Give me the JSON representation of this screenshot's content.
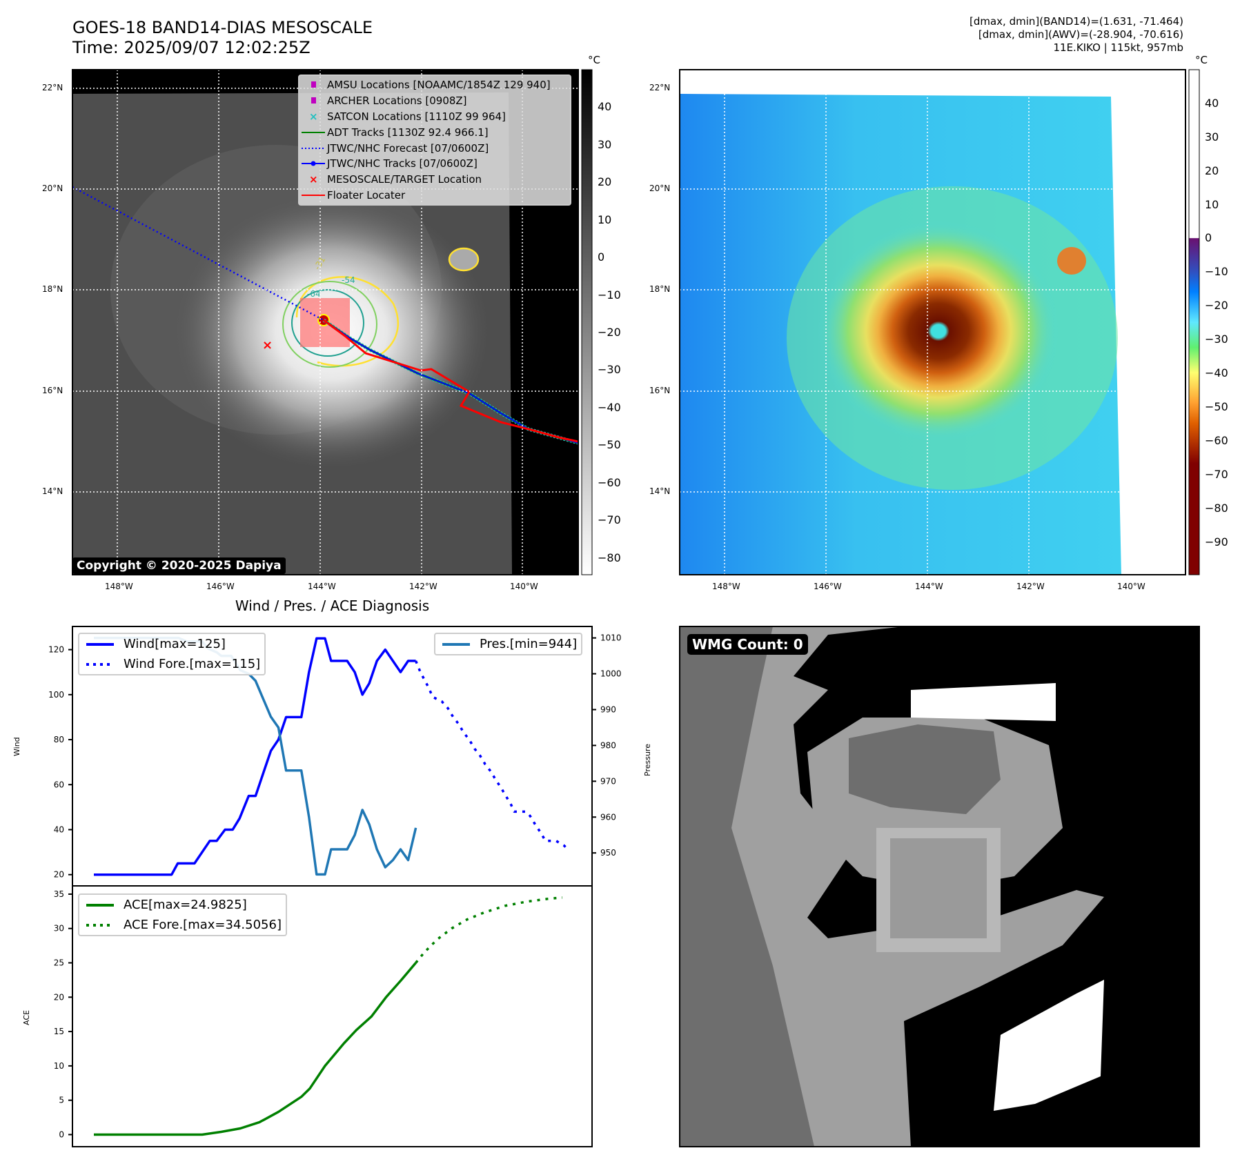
{
  "header": {
    "title_line1": "GOES-18 BAND14-DIAS MESOSCALE",
    "title_line2": "Time: 2025/09/07 12:02:25Z",
    "info_line1": "[dmax, dmin](BAND14)=(1.631, -71.464)",
    "info_line2": "[dmax, dmin](AWV)=(-28.904, -70.616)",
    "info_line3": "11E.KIKO | 115kt, 957mb"
  },
  "map": {
    "lon_ticks": [
      "148°W",
      "146°W",
      "144°W",
      "142°W",
      "140°W"
    ],
    "lat_ticks": [
      "22°N",
      "20°N",
      "18°N",
      "16°N",
      "14°N"
    ],
    "contour_labels": [
      "-31",
      "-54",
      "-64"
    ],
    "copyright": "Copyright © 2020-2025 Dapiya",
    "legend": [
      {
        "label": "AMSU Locations [NOAAMC/1854Z 129 940]",
        "symbol": "square",
        "color": "#c000c0"
      },
      {
        "label": "ARCHER Locations [0908Z]",
        "symbol": "square",
        "color": "#c000c0"
      },
      {
        "label": "SATCON Locations [1110Z 99 964]",
        "symbol": "x",
        "color": "#20c0c0"
      },
      {
        "label": "ADT Tracks [1130Z 92.4 966.1]",
        "symbol": "line",
        "color": "#008000"
      },
      {
        "label": "JTWC/NHC Forecast [07/0600Z]",
        "symbol": "dotted",
        "color": "#0000ff"
      },
      {
        "label": "JTWC/NHC Tracks [07/0600Z]",
        "symbol": "line-dot",
        "color": "#0000ff"
      },
      {
        "label": "MESOSCALE/TARGET Location",
        "symbol": "x",
        "color": "#ff0000"
      },
      {
        "label": "Floater Locater",
        "symbol": "line",
        "color": "#ff0000"
      }
    ]
  },
  "colorbar1": {
    "unit": "°C",
    "range": [
      -84.5,
      50
    ],
    "ticks": [
      "40",
      "30",
      "20",
      "10",
      "0",
      "−10",
      "−20",
      "−30",
      "−40",
      "−50",
      "−60",
      "−70",
      "−80"
    ],
    "tick_values": [
      40,
      30,
      20,
      10,
      0,
      -10,
      -20,
      -30,
      -40,
      -50,
      -60,
      -70,
      -80
    ]
  },
  "colorbar2": {
    "unit": "°C",
    "range": [
      -99.7,
      50
    ],
    "ticks": [
      "40",
      "30",
      "20",
      "10",
      "0",
      "−10",
      "−20",
      "−30",
      "−40",
      "−50",
      "−60",
      "−70",
      "−80",
      "−90"
    ],
    "tick_values": [
      40,
      30,
      20,
      10,
      0,
      -10,
      -20,
      -30,
      -40,
      -50,
      -60,
      -70,
      -80,
      -90
    ]
  },
  "wmg": {
    "label": "WMG Count: 0"
  },
  "chart_data": [
    {
      "type": "line",
      "title": "Wind / Pres. / ACE Diagnosis",
      "ylabel": "Wind",
      "y2label": "Pressure",
      "xlim": [
        -2.8,
        65.3
      ],
      "ylim": [
        15,
        130.3
      ],
      "y2lim": [
        940.8,
        1013.2
      ],
      "yticks": [
        20,
        40,
        60,
        80,
        100,
        120
      ],
      "y2ticks": [
        950,
        960,
        970,
        980,
        990,
        1000,
        1010
      ],
      "series": [
        {
          "name": "Wind[max=125]",
          "color": "#0000ff",
          "style": "solid",
          "axis": "left",
          "points": [
            [
              0,
              20
            ],
            [
              10.2,
              20
            ],
            [
              11,
              25
            ],
            [
              13.2,
              25
            ],
            [
              15.2,
              35
            ],
            [
              16.1,
              35
            ],
            [
              17.2,
              40
            ],
            [
              18.2,
              40
            ],
            [
              19.1,
              45
            ],
            [
              20.3,
              55
            ],
            [
              21.2,
              55
            ],
            [
              22.2,
              65
            ],
            [
              23.2,
              75
            ],
            [
              24.2,
              80
            ],
            [
              25.2,
              90
            ],
            [
              27.2,
              90
            ],
            [
              28.2,
              110
            ],
            [
              29.2,
              125
            ],
            [
              30.3,
              125
            ],
            [
              31.1,
              115
            ],
            [
              33.2,
              115
            ],
            [
              34.2,
              110
            ],
            [
              35.2,
              100
            ],
            [
              36.1,
              105
            ],
            [
              37.1,
              115
            ],
            [
              38.2,
              120
            ],
            [
              40.2,
              110
            ],
            [
              41.2,
              115
            ],
            [
              42.2,
              115
            ]
          ]
        },
        {
          "name": "Wind Fore.[max=115]",
          "color": "#0000ff",
          "style": "dotted",
          "axis": "left",
          "points": [
            [
              42.2,
              115
            ],
            [
              42.8,
              110
            ],
            [
              43.9,
              103
            ],
            [
              44.4,
              99
            ],
            [
              45.6,
              97
            ],
            [
              46.4,
              94
            ],
            [
              47.1,
              90
            ],
            [
              47.8,
              87
            ],
            [
              48.5,
              83
            ],
            [
              49.2,
              80
            ],
            [
              49.9,
              76
            ],
            [
              50.6,
              73
            ],
            [
              51.3,
              69
            ],
            [
              52,
              66
            ],
            [
              52.7,
              62
            ],
            [
              53.3,
              59
            ],
            [
              54,
              55
            ],
            [
              54.7,
              51
            ],
            [
              55.1,
              48
            ],
            [
              56.6,
              48
            ],
            [
              57.2,
              46
            ],
            [
              57.9,
              42
            ],
            [
              58.5,
              39
            ],
            [
              59.2,
              35
            ],
            [
              60.6,
              35
            ],
            [
              61.6,
              33
            ],
            [
              62.2,
              31
            ]
          ]
        },
        {
          "name": "Pres.[min=944]",
          "color": "#1f77b4",
          "style": "solid",
          "axis": "right",
          "points": [
            [
              0,
              1010
            ],
            [
              11.1,
              1010
            ],
            [
              12.2,
              1009
            ],
            [
              14.2,
              1009
            ],
            [
              15,
              1007
            ],
            [
              16.1,
              1006
            ],
            [
              16.7,
              1005
            ],
            [
              18,
              1005
            ],
            [
              19.2,
              1001
            ],
            [
              20.3,
              1000
            ],
            [
              21.2,
              998
            ],
            [
              22.2,
              993
            ],
            [
              23.2,
              988
            ],
            [
              24.2,
              985
            ],
            [
              25.2,
              973
            ],
            [
              27.2,
              973
            ],
            [
              28.2,
              960
            ],
            [
              29.2,
              944
            ],
            [
              30.3,
              944
            ],
            [
              31.1,
              951
            ],
            [
              33.2,
              951
            ],
            [
              34.2,
              955
            ],
            [
              35.2,
              962
            ],
            [
              36.1,
              958
            ],
            [
              37.1,
              951
            ],
            [
              38.2,
              946
            ],
            [
              39.2,
              948
            ],
            [
              40.2,
              951
            ],
            [
              41.2,
              948
            ],
            [
              42.2,
              957
            ]
          ]
        }
      ]
    },
    {
      "type": "line",
      "title": "",
      "ylabel": "ACE",
      "xlim": [
        -2.8,
        65.3
      ],
      "ylim": [
        -1.76,
        36.2
      ],
      "yticks": [
        0,
        5,
        10,
        15,
        20,
        25,
        30,
        35
      ],
      "series": [
        {
          "name": "ACE[max=24.9825]",
          "color": "#008000",
          "style": "solid",
          "points": [
            [
              0,
              0
            ],
            [
              14.2,
              0
            ],
            [
              16.7,
              0.4
            ],
            [
              19.2,
              0.9
            ],
            [
              21.7,
              1.8
            ],
            [
              24.2,
              3.3
            ],
            [
              27.2,
              5.5
            ],
            [
              28.3,
              6.7
            ],
            [
              30.3,
              10
            ],
            [
              32.8,
              13.3
            ],
            [
              34.4,
              15.2
            ],
            [
              36.4,
              17.2
            ],
            [
              38.3,
              20
            ],
            [
              40.3,
              22.5
            ],
            [
              42.2,
              25
            ]
          ]
        },
        {
          "name": "ACE Fore.[max=34.5056]",
          "color": "#008000",
          "style": "dotted",
          "points": [
            [
              42.2,
              25
            ],
            [
              43.3,
              26.5
            ],
            [
              45,
              28.4
            ],
            [
              46.9,
              30
            ],
            [
              48.9,
              31.3
            ],
            [
              51.1,
              32.3
            ],
            [
              53.9,
              33.3
            ],
            [
              56.7,
              33.9
            ],
            [
              59.4,
              34.3
            ],
            [
              61.4,
              34.5
            ]
          ]
        }
      ]
    }
  ]
}
